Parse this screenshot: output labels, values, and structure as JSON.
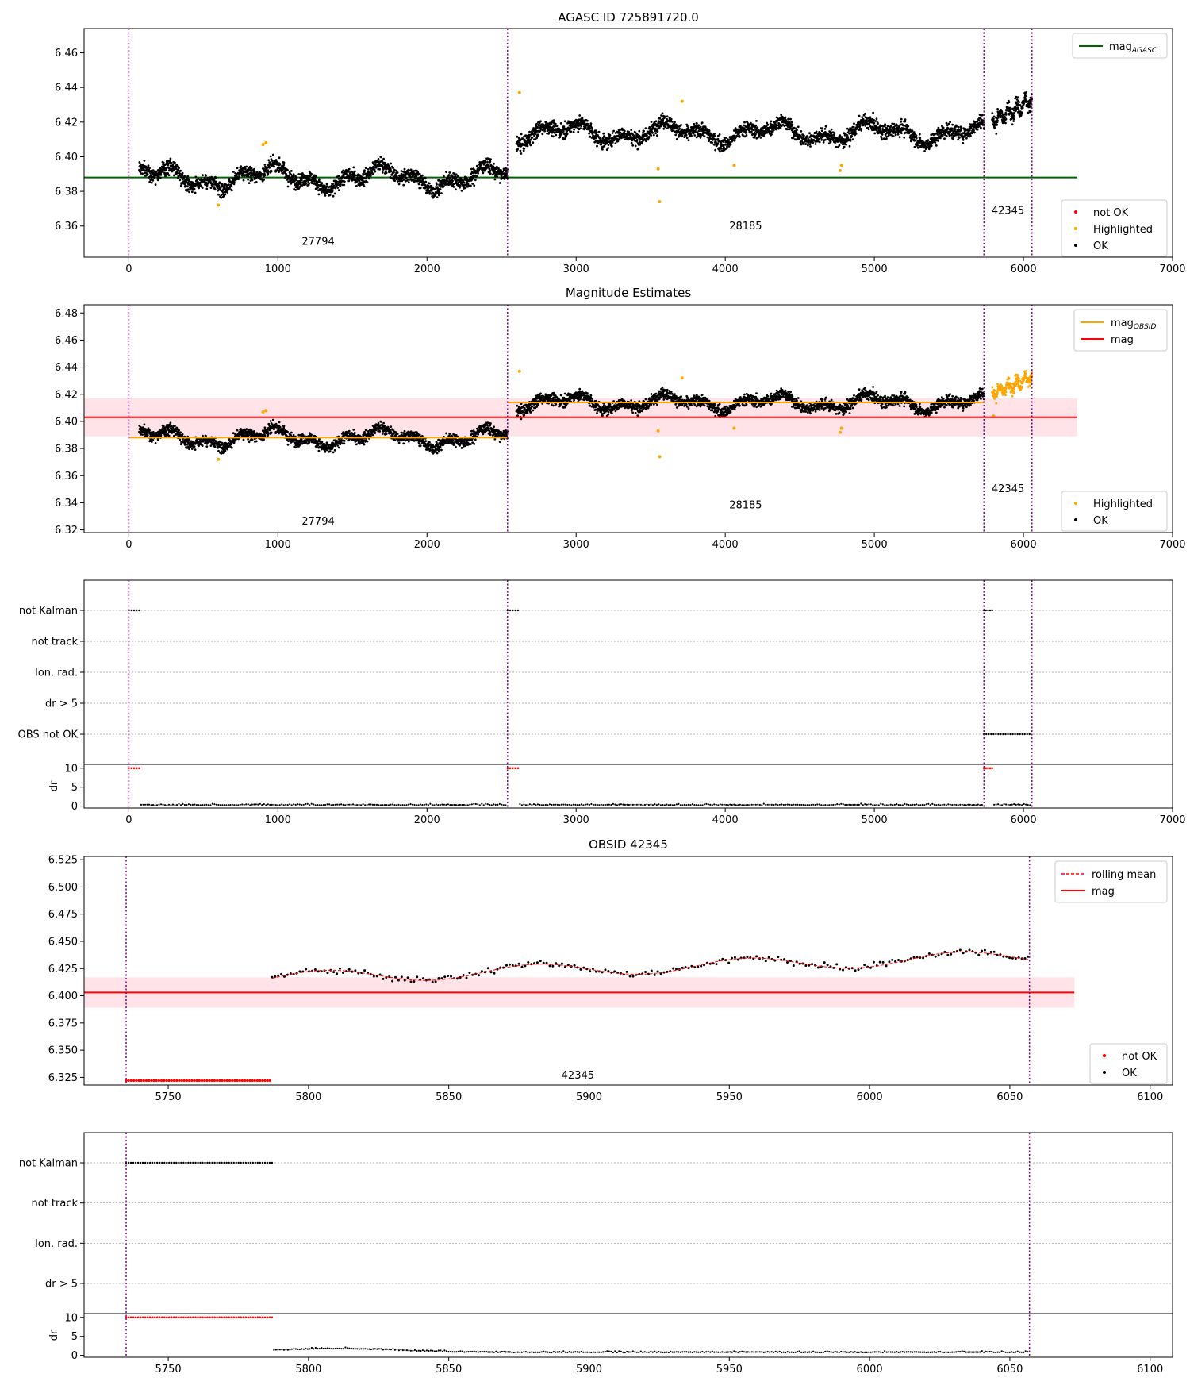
{
  "chart_data": [
    {
      "type": "scatter",
      "title": "AGASC ID 725891720.0",
      "xlim": [
        -300,
        7000
      ],
      "ylim": [
        6.342,
        6.474
      ],
      "xticks": [
        0,
        1000,
        2000,
        3000,
        4000,
        5000,
        6000,
        7000
      ],
      "yticks": [
        6.36,
        6.38,
        6.4,
        6.42,
        6.44,
        6.46
      ],
      "obsid_boundaries": [
        0,
        2540,
        5735,
        6057
      ],
      "obsid_labels": [
        {
          "text": "27794",
          "x": 1270,
          "y": 6.349
        },
        {
          "text": "28185",
          "x": 4137,
          "y": 6.358
        },
        {
          "text": "42345",
          "x": 5896,
          "y": 6.367
        }
      ],
      "hlines": [
        {
          "name": "mag_AGASC",
          "y": 6.388,
          "x": [
            -300,
            6360
          ],
          "color": "#006400"
        }
      ],
      "legend_lines": [
        {
          "label": "mag",
          "sub": "AGASC",
          "color": "#006400",
          "dash": false
        }
      ],
      "legend_markers": [
        {
          "label": "not OK",
          "color": "#ff0000"
        },
        {
          "label": "Highlighted",
          "color": "#ffa500"
        },
        {
          "label": "OK",
          "color": "#000000"
        }
      ],
      "highlighted_points": [
        [
          600,
          6.372
        ],
        [
          900,
          6.407
        ],
        [
          920,
          6.408
        ],
        [
          2620,
          6.437
        ],
        [
          3550,
          6.393
        ],
        [
          3560,
          6.374
        ],
        [
          3710,
          6.432
        ],
        [
          4060,
          6.395
        ],
        [
          4770,
          6.392
        ],
        [
          4780,
          6.395
        ]
      ]
    },
    {
      "type": "scatter",
      "title": "Magnitude Estimates",
      "xlim": [
        -300,
        7000
      ],
      "ylim": [
        6.318,
        6.486
      ],
      "xticks": [
        0,
        1000,
        2000,
        3000,
        4000,
        5000,
        6000,
        7000
      ],
      "yticks": [
        6.32,
        6.34,
        6.36,
        6.38,
        6.4,
        6.42,
        6.44,
        6.46,
        6.48
      ],
      "obsid_boundaries": [
        0,
        2540,
        5735,
        6057
      ],
      "obsid_labels": [
        {
          "text": "27794",
          "x": 1270,
          "y": 6.324
        },
        {
          "text": "28185",
          "x": 4137,
          "y": 6.336
        },
        {
          "text": "42345",
          "x": 5896,
          "y": 6.348
        }
      ],
      "band": {
        "y0": 6.389,
        "y1": 6.417,
        "x": [
          -300,
          6360
        ],
        "color": "#ffc0cb"
      },
      "hlines": [
        {
          "name": "mag",
          "y": 6.403,
          "x": [
            -300,
            6360
          ],
          "color": "#ff0000"
        },
        {
          "name": "mag_OBSID 27794",
          "y": 6.388,
          "x": [
            0,
            2540
          ],
          "color": "#ffa500"
        },
        {
          "name": "mag_OBSID 28185",
          "y": 6.414,
          "x": [
            2540,
            5735
          ],
          "color": "#ffa500"
        }
      ],
      "legend_lines": [
        {
          "label": "mag",
          "sub": "OBSID",
          "color": "#ffa500",
          "dash": false
        },
        {
          "label": "mag",
          "sub": "",
          "color": "#ff0000",
          "dash": false
        }
      ],
      "legend_markers": [
        {
          "label": "Highlighted",
          "color": "#ffa500"
        },
        {
          "label": "OK",
          "color": "#000000"
        }
      ],
      "highlighted_points": [
        [
          600,
          6.372
        ],
        [
          900,
          6.407
        ],
        [
          920,
          6.408
        ],
        [
          2620,
          6.437
        ],
        [
          3550,
          6.393
        ],
        [
          3560,
          6.374
        ],
        [
          3710,
          6.432
        ],
        [
          4060,
          6.395
        ],
        [
          4770,
          6.392
        ],
        [
          4780,
          6.395
        ],
        [
          5800,
          6.404
        ]
      ]
    },
    {
      "type": "scatter",
      "title": "",
      "xlim": [
        -300,
        7000
      ],
      "xticks": [
        0,
        1000,
        2000,
        3000,
        4000,
        5000,
        6000,
        7000
      ],
      "flag_labels": [
        "not Kalman",
        "not track",
        "Ion. rad.",
        "dr > 5",
        "OBS not OK"
      ],
      "dr_ylim": [
        -0.5,
        11
      ],
      "dr_ylabel": "dr",
      "dr_yticks": [
        0,
        5,
        10
      ],
      "obsid_boundaries": [
        0,
        2540,
        5735,
        6057
      ],
      "flag_segments": [
        {
          "flag": "not Kalman",
          "x": [
            0,
            70
          ]
        },
        {
          "flag": "not Kalman",
          "x": [
            2540,
            2610
          ]
        },
        {
          "flag": "not Kalman",
          "x": [
            5735,
            5790
          ]
        },
        {
          "flag": "OBS not OK",
          "x": [
            5735,
            6057
          ]
        }
      ],
      "dr_high_segments": [
        [
          0,
          70
        ],
        [
          2540,
          2610
        ],
        [
          5735,
          5790
        ]
      ]
    },
    {
      "type": "scatter",
      "title": "OBSID 42345",
      "xlim": [
        5720,
        6108
      ],
      "ylim": [
        6.318,
        6.528
      ],
      "xticks": [
        5750,
        5800,
        5850,
        5900,
        5950,
        6000,
        6050,
        6100
      ],
      "yticks": [
        6.325,
        6.35,
        6.375,
        6.4,
        6.425,
        6.45,
        6.475,
        6.5,
        6.525
      ],
      "obsid_boundaries": [
        5735,
        6057
      ],
      "obsid_labels": [
        {
          "text": "42345",
          "x": 5896,
          "y": 6.324
        }
      ],
      "band": {
        "y0": 6.389,
        "y1": 6.417,
        "x": [
          5720,
          6073
        ],
        "color": "#ffc0cb"
      },
      "hlines": [
        {
          "name": "mag",
          "y": 6.403,
          "x": [
            5720,
            6073
          ],
          "color": "#ff0000"
        }
      ],
      "legend_lines": [
        {
          "label": "rolling mean",
          "sub": "",
          "color": "#ff0000",
          "dash": true
        },
        {
          "label": "mag",
          "sub": "",
          "color": "#ff0000",
          "dash": false
        }
      ],
      "legend_markers": [
        {
          "label": "not OK",
          "color": "#ff0000"
        },
        {
          "label": "OK",
          "color": "#000000"
        }
      ],
      "not_ok_segment": {
        "x": [
          5735,
          5787
        ],
        "y": 6.322
      }
    },
    {
      "type": "scatter",
      "title": "",
      "xlim": [
        5720,
        6108
      ],
      "xticks": [
        5750,
        5800,
        5850,
        5900,
        5950,
        6000,
        6050,
        6100
      ],
      "flag_labels": [
        "not Kalman",
        "not track",
        "Ion. rad.",
        "dr > 5"
      ],
      "dr_ylim": [
        -0.5,
        11
      ],
      "dr_ylabel": "dr",
      "dr_yticks": [
        0,
        5,
        10
      ],
      "obsid_boundaries": [
        5735,
        6057
      ],
      "flag_segments": [
        {
          "flag": "not Kalman",
          "x": [
            5735,
            5787
          ]
        }
      ],
      "dr_high_segments": [
        [
          5735,
          5787
        ]
      ]
    }
  ]
}
